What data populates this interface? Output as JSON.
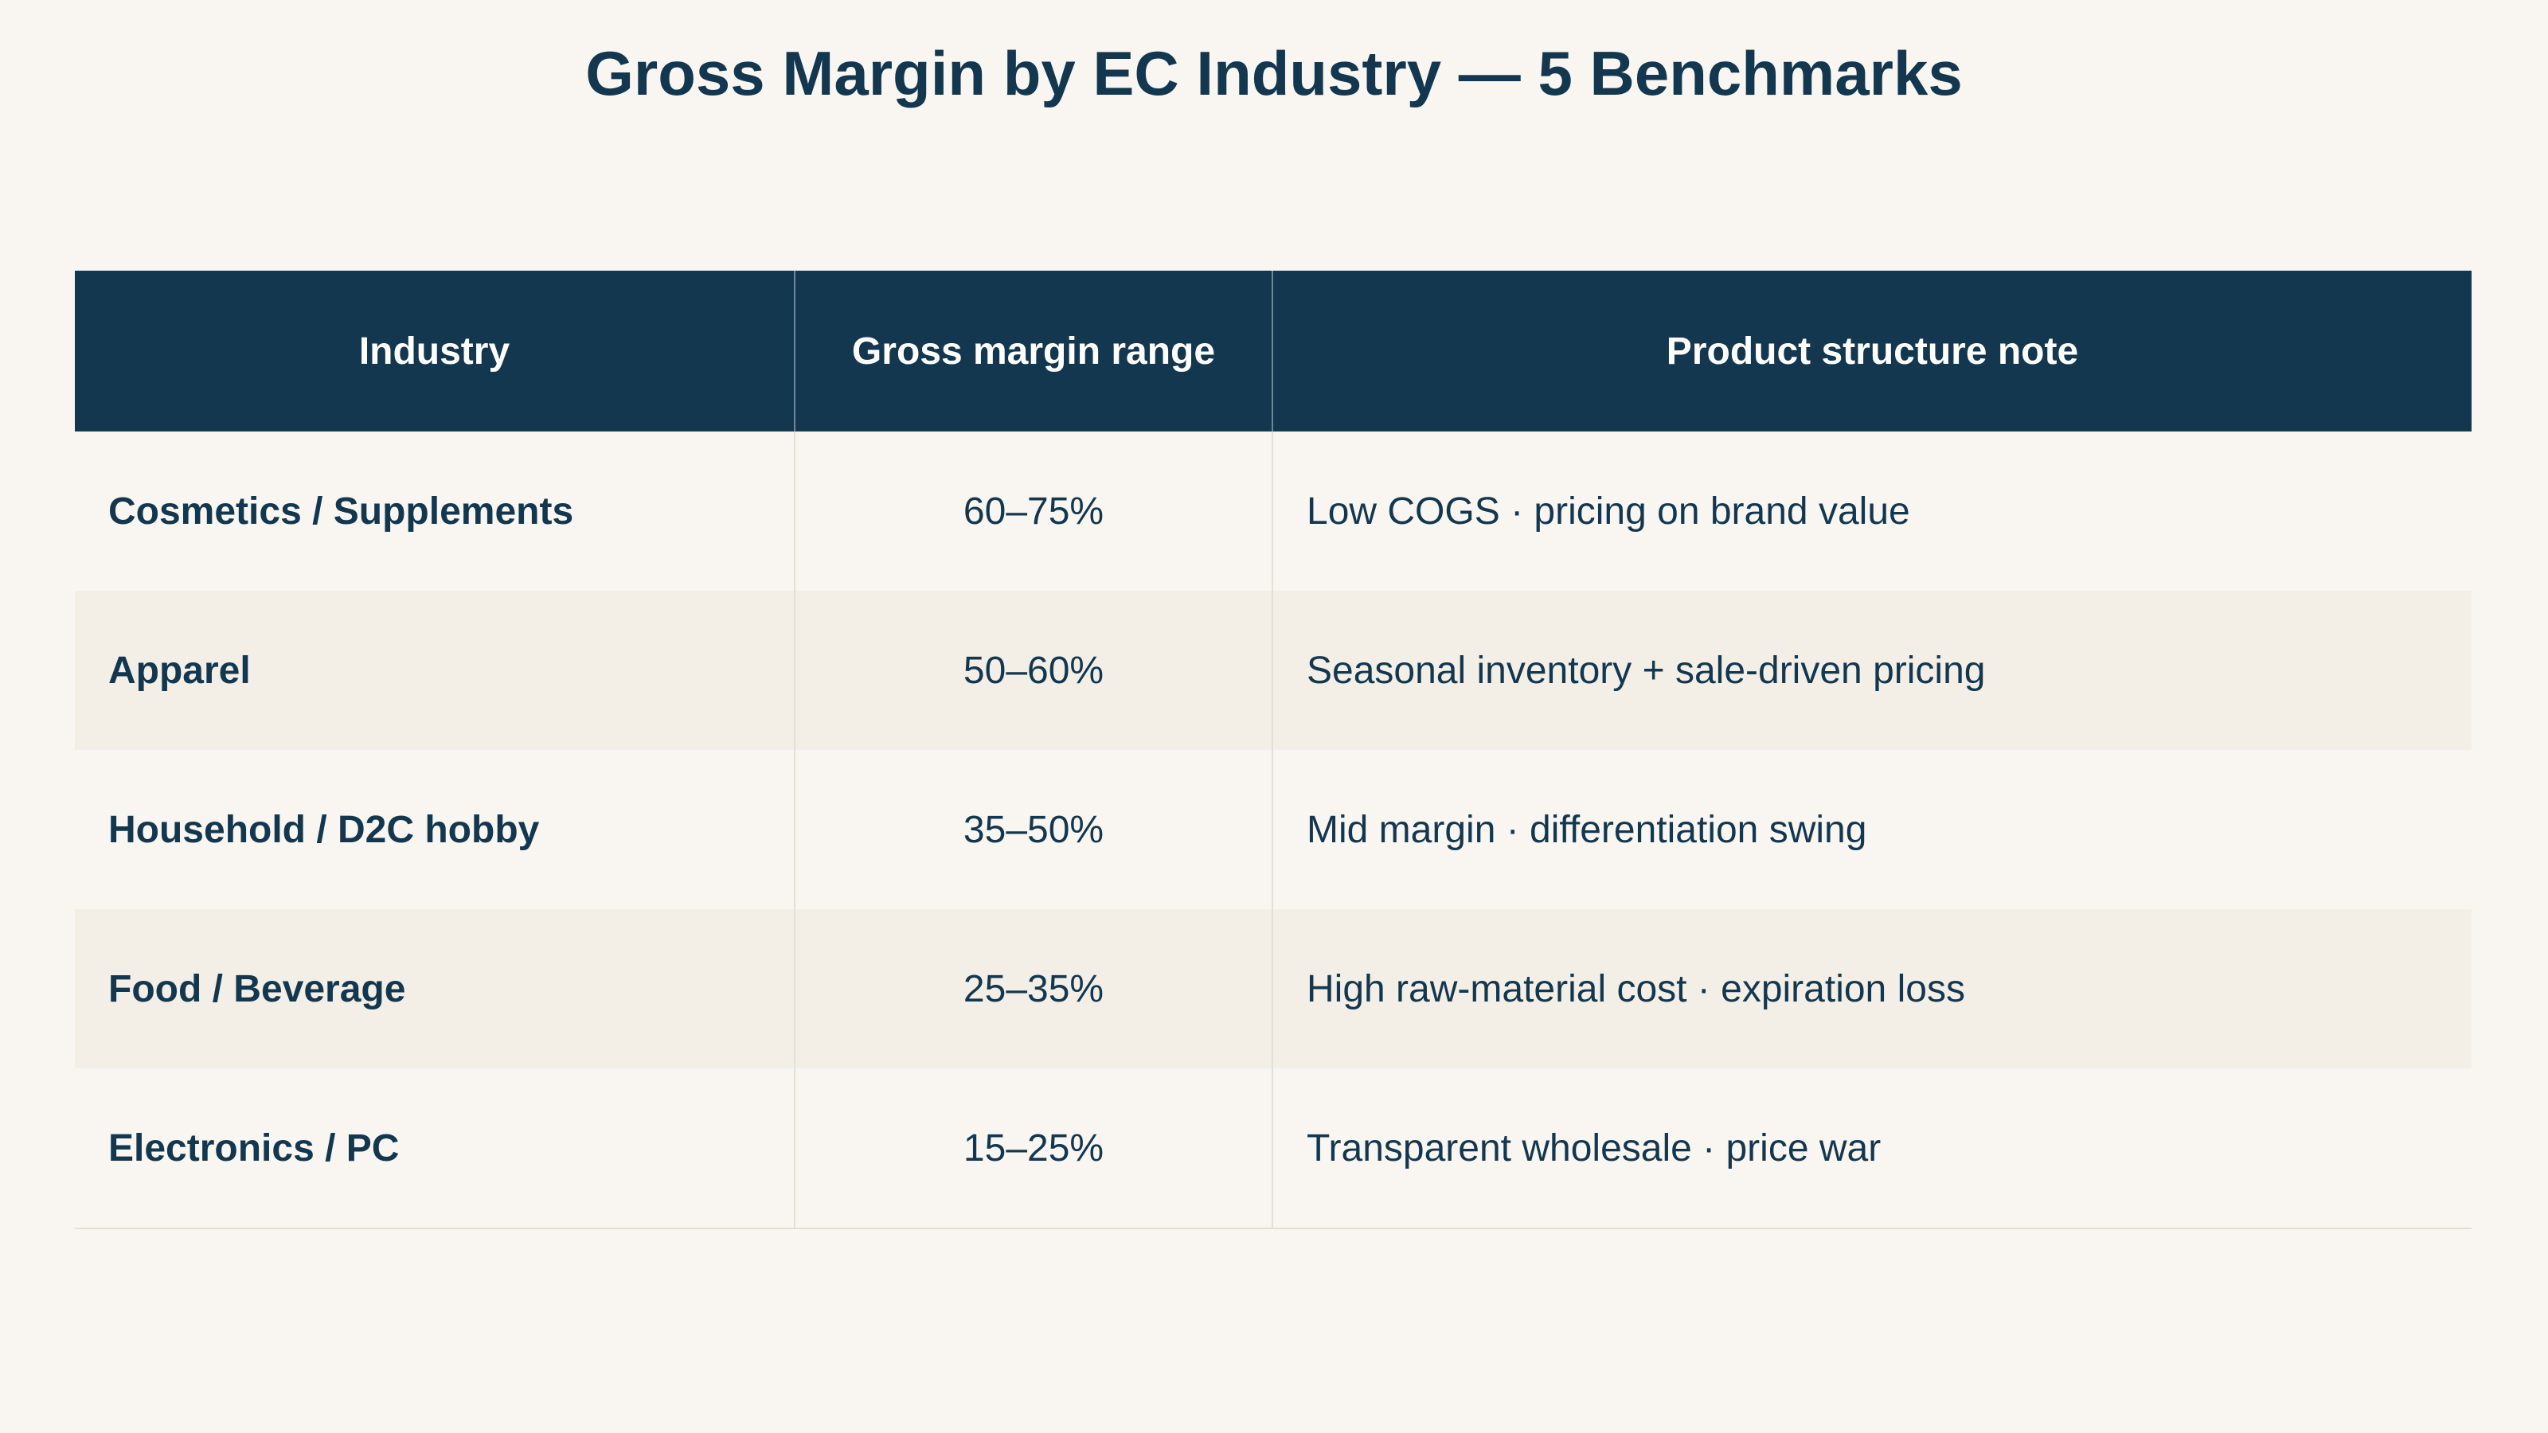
{
  "chart_data": {
    "type": "table",
    "title": "Gross Margin by EC Industry — 5 Benchmarks",
    "columns": [
      "Industry",
      "Gross margin range",
      "Product structure note"
    ],
    "rows": [
      {
        "industry": "Cosmetics / Supplements",
        "range": "60–75%",
        "note": "Low COGS · pricing on brand value"
      },
      {
        "industry": "Apparel",
        "range": "50–60%",
        "note": "Seasonal inventory + sale-driven pricing"
      },
      {
        "industry": "Household / D2C hobby",
        "range": "35–50%",
        "note": "Mid margin · differentiation swing"
      },
      {
        "industry": "Food / Beverage",
        "range": "25–35%",
        "note": "High raw-material cost · expiration loss"
      },
      {
        "industry": "Electronics / PC",
        "range": "15–25%",
        "note": "Transparent wholesale · price war"
      }
    ]
  },
  "colors": {
    "header_bg": "#13374f",
    "header_text": "#ffffff",
    "page_bg": "#f9f6f1",
    "row_alt_bg": "#f3efe7",
    "text": "#13374f"
  }
}
